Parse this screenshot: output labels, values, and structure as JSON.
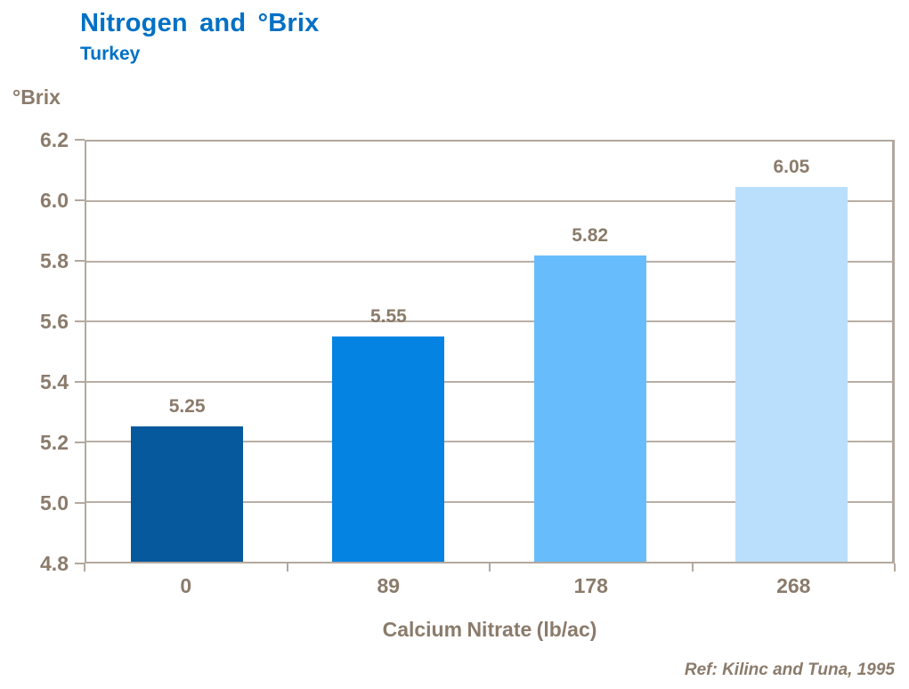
{
  "header": {
    "title": "Nitrogen and °Brix",
    "subtitle": "Turkey"
  },
  "chart_data": {
    "type": "bar",
    "categories": [
      "0",
      "89",
      "178",
      "268"
    ],
    "values": [
      5.25,
      5.55,
      5.82,
      6.05
    ],
    "value_labels": [
      "5.25",
      "5.55",
      "5.82",
      "6.05"
    ],
    "title": "Nitrogen and °Brix",
    "subtitle": "Turkey",
    "xlabel": "Calcium Nitrate (lb/ac)",
    "ylabel": "°Brix",
    "ylim": [
      4.8,
      6.2
    ],
    "yticks": [
      "6.2",
      "6.0",
      "5.8",
      "5.6",
      "5.4",
      "5.2",
      "5.0",
      "4.8"
    ],
    "grid": true,
    "legend": "none",
    "bar_colors": [
      "#05599C",
      "#0583E3",
      "#67BDFB",
      "#B9DFFC"
    ]
  },
  "footer": {
    "reference": "Ref: Kilinc and Tuna, 1995"
  },
  "colors": {
    "title_blue": "#0070C5",
    "axis_text": "#8B7B6B",
    "grid_line": "#B3A89E"
  }
}
